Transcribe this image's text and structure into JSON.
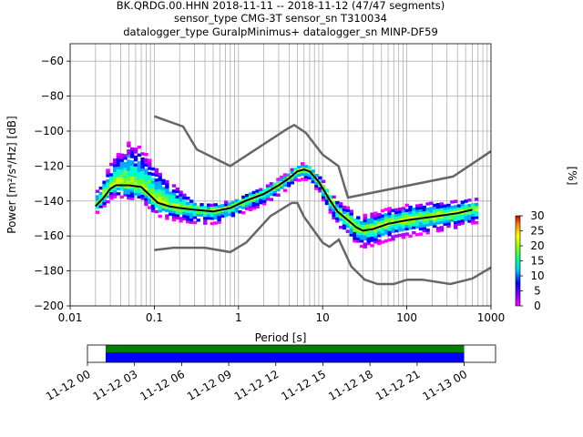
{
  "chart_data": {
    "type": "heatmap",
    "title_lines": [
      "BK.QRDG.00.HHN   2018-11-11 -- 2018-11-12  (47/47 segments)",
      "sensor_type CMG-3T sensor_sn T310034",
      "datalogger_type GuralpMinimus+ datalogger_sn MINP-DF59"
    ],
    "xlabel": "Period [s]",
    "ylabel": "Power [m²/s⁴/Hz] [dB]",
    "xscale": "log",
    "xlim": [
      0.01,
      1000
    ],
    "ylim": [
      -200,
      -50
    ],
    "x_tick_labels": [
      {
        "v": 0.01,
        "label": "0.01"
      },
      {
        "v": 0.1,
        "label": "0.1"
      },
      {
        "v": 1,
        "label": "1"
      },
      {
        "v": 10,
        "label": "10"
      },
      {
        "v": 100,
        "label": "100"
      },
      {
        "v": 1000,
        "label": "1000"
      }
    ],
    "y_tick_labels": [
      {
        "v": -60,
        "label": "−60"
      },
      {
        "v": -80,
        "label": "−80"
      },
      {
        "v": -100,
        "label": "−100"
      },
      {
        "v": -120,
        "label": "−120"
      },
      {
        "v": -140,
        "label": "−140"
      },
      {
        "v": -160,
        "label": "−160"
      },
      {
        "v": -180,
        "label": "−180"
      },
      {
        "v": -200,
        "label": "−200"
      }
    ],
    "noise_model_high": [
      [
        0.1,
        -91.5
      ],
      [
        0.22,
        -97.4
      ],
      [
        0.32,
        -110.5
      ],
      [
        0.8,
        -120
      ],
      [
        3.8,
        -98.7
      ],
      [
        4.6,
        -96.5
      ],
      [
        6.3,
        -101
      ],
      [
        10,
        -113.5
      ],
      [
        15.4,
        -120
      ],
      [
        20,
        -138
      ],
      [
        354.8,
        -126
      ],
      [
        1000,
        -111.5
      ]
    ],
    "noise_model_low": [
      [
        0.1,
        -168
      ],
      [
        0.17,
        -166.7
      ],
      [
        0.4,
        -166.7
      ],
      [
        0.8,
        -169.2
      ],
      [
        1.24,
        -163.7
      ],
      [
        2.4,
        -148.6
      ],
      [
        4.3,
        -141.1
      ],
      [
        5,
        -141.1
      ],
      [
        6,
        -149
      ],
      [
        10,
        -163.8
      ],
      [
        12,
        -166.2
      ],
      [
        15.6,
        -162.1
      ],
      [
        21.9,
        -177.5
      ],
      [
        31.6,
        -185
      ],
      [
        45,
        -187.5
      ],
      [
        70,
        -187.5
      ],
      [
        101,
        -185
      ],
      [
        154,
        -185
      ],
      [
        328,
        -187.5
      ],
      [
        600,
        -184.4
      ],
      [
        1000,
        -178
      ]
    ],
    "mean_curve": [
      [
        0.02,
        -143
      ],
      [
        0.025,
        -138
      ],
      [
        0.03,
        -133
      ],
      [
        0.035,
        -131
      ],
      [
        0.05,
        -131
      ],
      [
        0.07,
        -132
      ],
      [
        0.09,
        -137
      ],
      [
        0.11,
        -141
      ],
      [
        0.15,
        -143
      ],
      [
        0.2,
        -144
      ],
      [
        0.3,
        -145
      ],
      [
        0.5,
        -146
      ],
      [
        0.8,
        -144
      ],
      [
        1.2,
        -140
      ],
      [
        2,
        -136
      ],
      [
        3,
        -131
      ],
      [
        4,
        -127
      ],
      [
        5,
        -123
      ],
      [
        6,
        -122
      ],
      [
        7,
        -123
      ],
      [
        9,
        -129
      ],
      [
        12,
        -139
      ],
      [
        15,
        -146
      ],
      [
        20,
        -151
      ],
      [
        25,
        -155
      ],
      [
        30,
        -157
      ],
      [
        40,
        -156
      ],
      [
        60,
        -153
      ],
      [
        100,
        -151
      ],
      [
        200,
        -149
      ],
      [
        400,
        -147
      ],
      [
        600,
        -145
      ]
    ],
    "psd_spread": {
      "period_min": 0.02,
      "period_max": 700,
      "center_curve": "mean_curve",
      "spread_db_below": [
        [
          0.02,
          5
        ],
        [
          0.05,
          8
        ],
        [
          0.3,
          8
        ],
        [
          3,
          6
        ],
        [
          8,
          6
        ],
        [
          30,
          10
        ],
        [
          100,
          10
        ],
        [
          700,
          8
        ]
      ],
      "spread_db_above": [
        [
          0.02,
          6
        ],
        [
          0.05,
          24
        ],
        [
          0.12,
          18
        ],
        [
          0.3,
          4
        ],
        [
          3,
          3
        ],
        [
          8,
          3
        ],
        [
          30,
          8
        ],
        [
          100,
          8
        ],
        [
          700,
          6
        ]
      ]
    },
    "colorbar": {
      "label": "[%]",
      "range": [
        0,
        30
      ],
      "ticks": [
        0,
        5,
        10,
        15,
        20,
        25,
        30
      ]
    },
    "time_axis": {
      "range_hours": [
        0,
        26
      ],
      "ticks": [
        {
          "h": 0,
          "label": "11-12 00"
        },
        {
          "h": 3,
          "label": "11-12 03"
        },
        {
          "h": 6,
          "label": "11-12 06"
        },
        {
          "h": 9,
          "label": "11-12 09"
        },
        {
          "h": 12,
          "label": "11-12 12"
        },
        {
          "h": 15,
          "label": "11-12 15"
        },
        {
          "h": 18,
          "label": "11-12 18"
        },
        {
          "h": 21,
          "label": "11-12 21"
        },
        {
          "h": 24,
          "label": "11-13 00"
        }
      ],
      "data_coverage_hours": [
        -1.2,
        24
      ],
      "bars": [
        {
          "name": "data-coverage",
          "color": "#008000"
        },
        {
          "name": "psd-segments",
          "color": "#0000ff"
        }
      ]
    }
  }
}
